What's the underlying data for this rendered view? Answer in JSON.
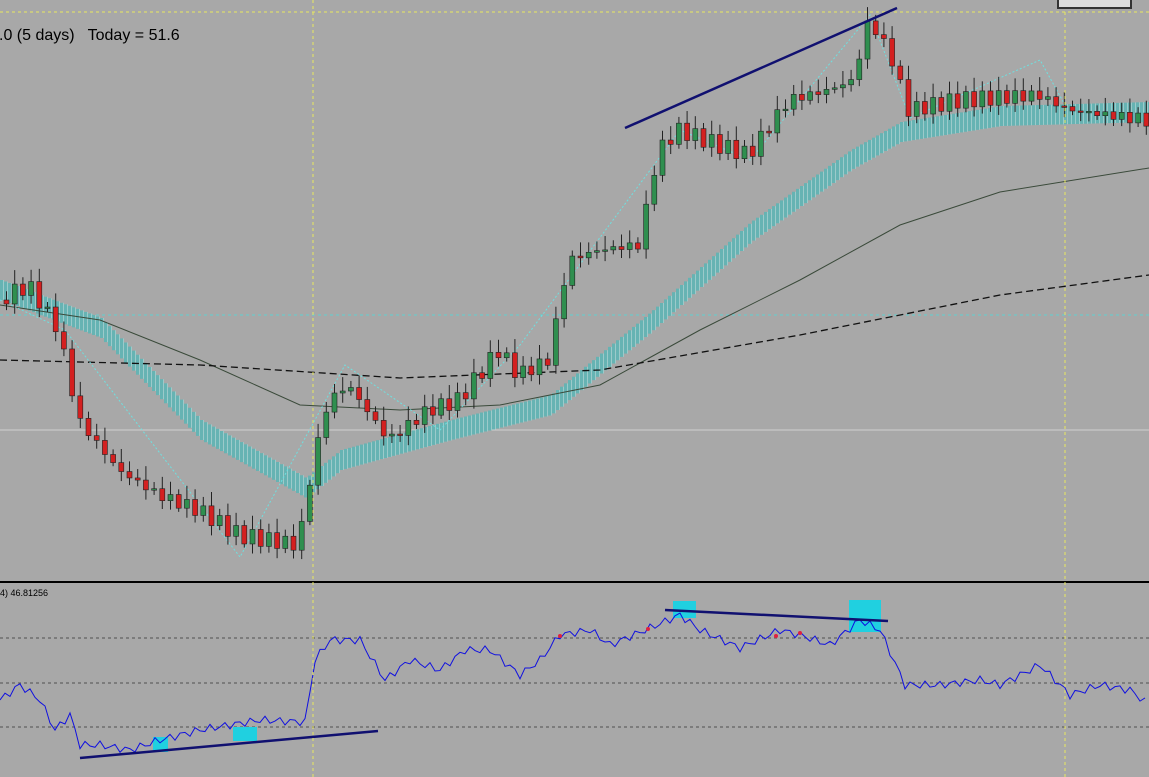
{
  "header": {
    "info": ".0 (5 days)   Today = 51.6"
  },
  "indicator": {
    "label": "4) 46.81256"
  }
}
